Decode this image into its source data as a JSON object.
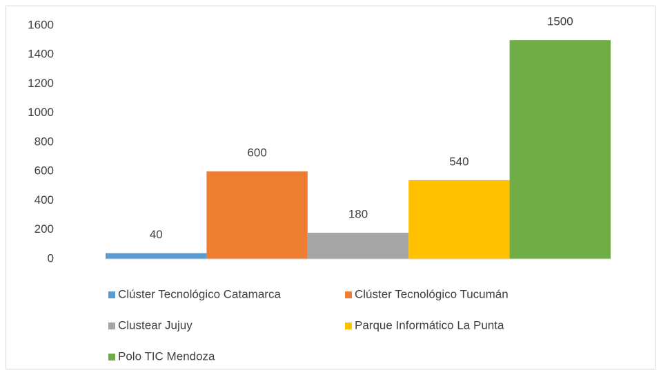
{
  "chart_data": {
    "type": "bar",
    "categories": [
      null
    ],
    "series": [
      {
        "name": "Clúster Tecnológico Catamarca",
        "color": "#5b9bd5",
        "values": [
          40
        ]
      },
      {
        "name": "Clúster Tecnológico Tucumán",
        "color": "#ed7d31",
        "values": [
          600
        ]
      },
      {
        "name": "Clustear Jujuy",
        "color": "#a5a5a5",
        "values": [
          180
        ]
      },
      {
        "name": "Parque Informático La Punta",
        "color": "#ffc000",
        "values": [
          540
        ]
      },
      {
        "name": "Polo TIC Mendoza",
        "color": "#70ad47",
        "values": [
          1500
        ]
      }
    ],
    "ylim": [
      0,
      1600
    ],
    "yticks": [
      0,
      200,
      400,
      600,
      800,
      1000,
      1200,
      1400,
      1600
    ],
    "grid": false,
    "legend": "bottom",
    "data_labels": true
  }
}
